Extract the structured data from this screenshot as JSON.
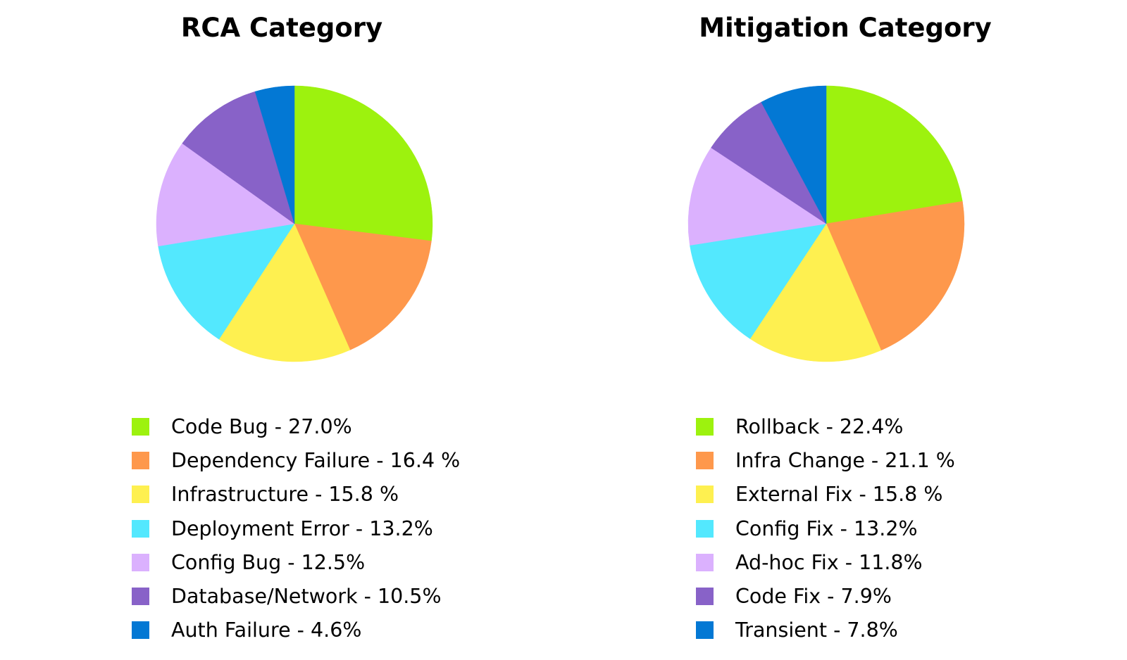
{
  "chart_data": [
    {
      "type": "pie",
      "title": "RCA Category",
      "labels": [
        "Code Bug",
        "Dependency Failure",
        "Infrastructure",
        "Deployment Error",
        "Config Bug",
        "Database/Network",
        "Auth Failure"
      ],
      "values": [
        27.0,
        16.4,
        15.8,
        13.2,
        12.5,
        10.5,
        4.6
      ],
      "legend_labels": [
        "Code Bug - 27.0%",
        "Dependency Failure - 16.4 %",
        "Infrastructure - 15.8 %",
        "Deployment Error - 13.2%",
        "Config Bug - 12.5%",
        "Database/Network - 10.5%",
        "Auth Failure - 4.6%"
      ],
      "colors": [
        "#9df20e",
        "#fe984c",
        "#fef050",
        "#53e8fe",
        "#dbb1fe",
        "#8862c8",
        "#0378d4"
      ],
      "start": "12 o'clock, clockwise",
      "legend_position": "bottom"
    },
    {
      "type": "pie",
      "title": "Mitigation Category",
      "labels": [
        "Rollback",
        "Infra Change",
        "External Fix",
        "Config Fix",
        "Ad-hoc Fix",
        "Code Fix",
        "Transient"
      ],
      "values": [
        22.4,
        21.1,
        15.8,
        13.2,
        11.8,
        7.9,
        7.8
      ],
      "legend_labels": [
        "Rollback - 22.4%",
        "Infra Change - 21.1 %",
        "External Fix - 15.8 %",
        "Config Fix - 13.2%",
        "Ad-hoc Fix - 11.8%",
        "Code Fix - 7.9%",
        "Transient - 7.8%"
      ],
      "colors": [
        "#9df20e",
        "#fe984c",
        "#fef050",
        "#53e8fe",
        "#dbb1fe",
        "#8862c8",
        "#0378d4"
      ],
      "start": "12 o'clock, clockwise",
      "legend_position": "bottom"
    }
  ]
}
